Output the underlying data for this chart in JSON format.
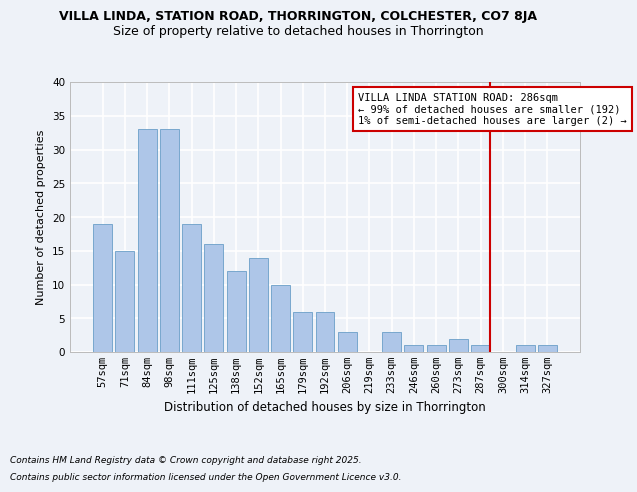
{
  "title": "VILLA LINDA, STATION ROAD, THORRINGTON, COLCHESTER, CO7 8JA",
  "subtitle": "Size of property relative to detached houses in Thorrington",
  "xlabel": "Distribution of detached houses by size in Thorrington",
  "ylabel": "Number of detached properties",
  "categories": [
    "57sqm",
    "71sqm",
    "84sqm",
    "98sqm",
    "111sqm",
    "125sqm",
    "138sqm",
    "152sqm",
    "165sqm",
    "179sqm",
    "192sqm",
    "206sqm",
    "219sqm",
    "233sqm",
    "246sqm",
    "260sqm",
    "273sqm",
    "287sqm",
    "300sqm",
    "314sqm",
    "327sqm"
  ],
  "values": [
    19,
    15,
    33,
    33,
    19,
    16,
    12,
    14,
    10,
    6,
    6,
    3,
    0,
    3,
    1,
    1,
    2,
    1,
    0,
    1,
    1
  ],
  "bar_color": "#aec6e8",
  "bar_edge_color": "#6a9fc8",
  "background_color": "#eef2f8",
  "grid_color": "#ffffff",
  "ylim": [
    0,
    40
  ],
  "yticks": [
    0,
    5,
    10,
    15,
    20,
    25,
    30,
    35,
    40
  ],
  "annotation_text": "VILLA LINDA STATION ROAD: 286sqm\n← 99% of detached houses are smaller (192)\n1% of semi-detached houses are larger (2) →",
  "vline_x_index": 17,
  "annotation_box_facecolor": "#ffffff",
  "annotation_box_edgecolor": "#cc0000",
  "vline_color": "#cc0000",
  "footer_line1": "Contains HM Land Registry data © Crown copyright and database right 2025.",
  "footer_line2": "Contains public sector information licensed under the Open Government Licence v3.0.",
  "title_fontsize": 9,
  "subtitle_fontsize": 9,
  "tick_fontsize": 7.5,
  "ylabel_fontsize": 8,
  "xlabel_fontsize": 8.5,
  "annotation_fontsize": 7.5,
  "footer_fontsize": 6.5
}
